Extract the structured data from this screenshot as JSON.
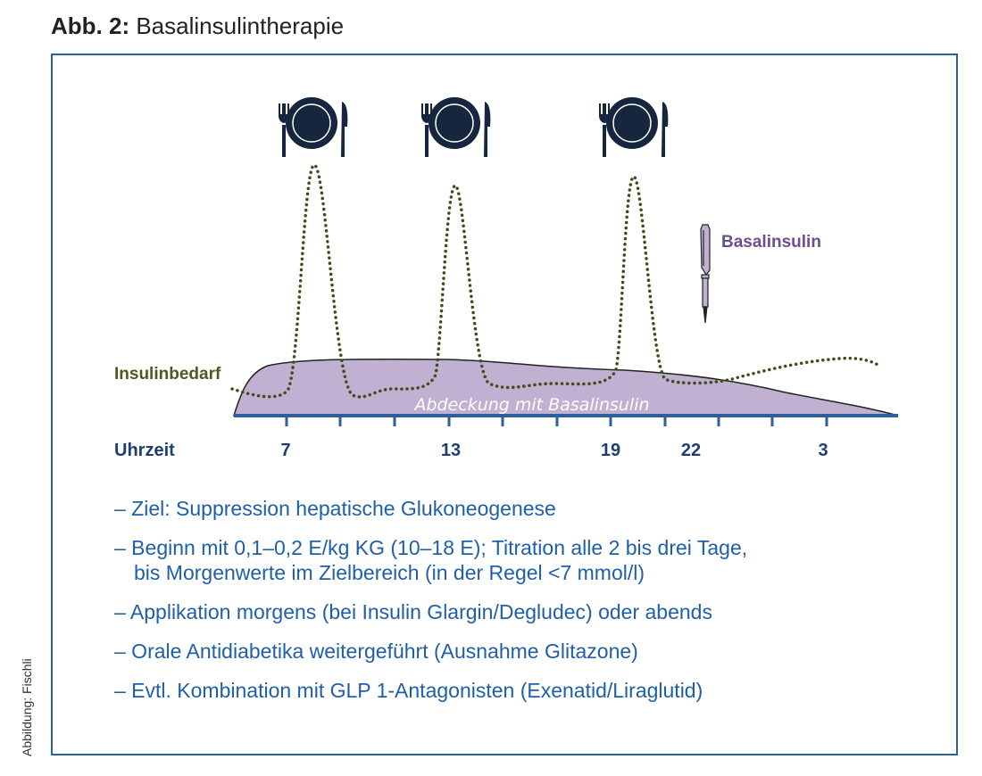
{
  "title": {
    "prefix": "Abb. 2:",
    "text": "Basalinsulintherapie"
  },
  "credit": "Abbildung: Fischli",
  "diagram": {
    "meal_icons": [
      "meal-icon",
      "meal-icon",
      "meal-icon"
    ],
    "pen_icon": "insulin-pen-icon",
    "pen_label": "Basalinsulin",
    "demand_label": "Insulinbedarf",
    "area_label": "Abdeckung mit Basalinsulin",
    "axis_label": "Uhrzeit",
    "time_labels": [
      "7",
      "13",
      "19",
      "22",
      "3"
    ],
    "colors": {
      "area": "#c0b0d2",
      "demand": "#3f4d1a",
      "axis": "#2d5f9a",
      "icon": "#16263f",
      "pen_label": "#6b4f8c"
    }
  },
  "bullets": [
    {
      "line1": "– Ziel: Suppression hepatische Glukoneogenese"
    },
    {
      "line1": "– Beginn mit 0,1–0,2 E/kg KG (10–18 E); Titration alle 2 bis drei Tage,",
      "line2": "bis Morgenwerte im Zielbereich (in der Regel <7 mmol/l)"
    },
    {
      "line1": "– Applikation morgens (bei Insulin Glargin/Degludec) oder abends"
    },
    {
      "line1": "– Orale Antidiabetika weitergeführt (Ausnahme Glitazone)"
    },
    {
      "line1": "– Evtl. Kombination mit GLP 1-Antagonisten (Exenatid/Liraglutid)"
    }
  ]
}
